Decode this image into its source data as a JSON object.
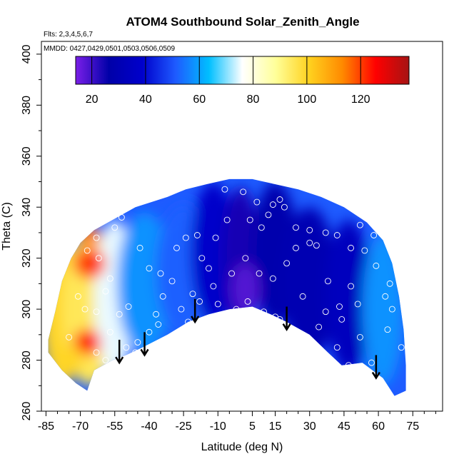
{
  "chart_data": {
    "type": "heatmap",
    "title": "ATOM4 Southbound Solar_Zenith_Angle",
    "subtitle_flights": "Flts: 2,3,4,5,6,7",
    "subtitle_dates": "MMDD: 0427,0429,0501,0503,0506,0509",
    "xlabel": "Latitude (deg N)",
    "ylabel": "Theta (C)",
    "xlim": [
      -87,
      88
    ],
    "ylim": [
      260,
      405
    ],
    "xticks": [
      -85,
      -70,
      -55,
      -40,
      -25,
      -10,
      5,
      15,
      30,
      45,
      60,
      75
    ],
    "xtick_labels": [
      "-85",
      "-70",
      "-55",
      "-40",
      "-25",
      "-10",
      "5",
      "15",
      "30",
      "45",
      "60",
      "75"
    ],
    "yticks": [
      260,
      280,
      300,
      320,
      340,
      360,
      380,
      400
    ],
    "ytick_labels": [
      "260",
      "280",
      "300",
      "320",
      "340",
      "360",
      "380",
      "400"
    ],
    "colorbar": {
      "range": [
        14,
        138
      ],
      "ticks": [
        20,
        40,
        60,
        80,
        100,
        120
      ],
      "tick_labels": [
        "20",
        "40",
        "60",
        "80",
        "100",
        "120"
      ],
      "colors": [
        "#7A1FE8",
        "#0000A8",
        "#0000CC",
        "#1E5BFF",
        "#00BFFF",
        "#FFFFFF",
        "#FFFF99",
        "#FFD21F",
        "#FF8A00",
        "#FF0000",
        "#A51414"
      ]
    },
    "domain_outline": [
      [
        -84,
        288
      ],
      [
        -81,
        299
      ],
      [
        -78,
        311
      ],
      [
        -74,
        320
      ],
      [
        -70,
        326
      ],
      [
        -64,
        331
      ],
      [
        -56,
        335
      ],
      [
        -46,
        340
      ],
      [
        -32,
        344
      ],
      [
        -24,
        347
      ],
      [
        -15,
        349
      ],
      [
        -5,
        351
      ],
      [
        5,
        351
      ],
      [
        15,
        349
      ],
      [
        25,
        347
      ],
      [
        35,
        344
      ],
      [
        45,
        340
      ],
      [
        55,
        334
      ],
      [
        62,
        327
      ],
      [
        66,
        318
      ],
      [
        69,
        305
      ],
      [
        71,
        292
      ],
      [
        72,
        278
      ],
      [
        72,
        268
      ],
      [
        67,
        266
      ],
      [
        62,
        273
      ],
      [
        53,
        279
      ],
      [
        44,
        278
      ],
      [
        38,
        283
      ],
      [
        30,
        290
      ],
      [
        20,
        295
      ],
      [
        13,
        298
      ],
      [
        5,
        301
      ],
      [
        -5,
        300
      ],
      [
        -14,
        298
      ],
      [
        -23,
        295
      ],
      [
        -32,
        290
      ],
      [
        -43,
        285
      ],
      [
        -50,
        282
      ],
      [
        -56,
        280
      ],
      [
        -60,
        278
      ],
      [
        -64,
        276
      ],
      [
        -67,
        268
      ],
      [
        -72,
        271
      ],
      [
        -78,
        276
      ],
      [
        -84,
        283
      ]
    ],
    "color_field": [
      {
        "x": -78,
        "y": 298,
        "value": 100,
        "rx": 9,
        "ry": 28
      },
      {
        "x": -66,
        "y": 300,
        "value": 95,
        "rx": 12,
        "ry": 30
      },
      {
        "x": -55,
        "y": 305,
        "value": 75,
        "rx": 9,
        "ry": 30
      },
      {
        "x": -42,
        "y": 310,
        "value": 58,
        "rx": 12,
        "ry": 28
      },
      {
        "x": -25,
        "y": 315,
        "value": 52,
        "rx": 12,
        "ry": 26
      },
      {
        "x": -12,
        "y": 322,
        "value": 38,
        "rx": 10,
        "ry": 28
      },
      {
        "x": 0,
        "y": 320,
        "value": 24,
        "rx": 8,
        "ry": 28
      },
      {
        "x": 15,
        "y": 322,
        "value": 28,
        "rx": 10,
        "ry": 28
      },
      {
        "x": 30,
        "y": 310,
        "value": 30,
        "rx": 12,
        "ry": 30
      },
      {
        "x": 47,
        "y": 305,
        "value": 34,
        "rx": 10,
        "ry": 30
      },
      {
        "x": 62,
        "y": 300,
        "value": 58,
        "rx": 9,
        "ry": 30
      },
      {
        "x": 2,
        "y": 308,
        "value": 18,
        "rx": 6,
        "ry": 10
      },
      {
        "x": -66,
        "y": 318,
        "value": 120,
        "rx": 7,
        "ry": 6
      },
      {
        "x": -67,
        "y": 287,
        "value": 125,
        "rx": 6,
        "ry": 5
      },
      {
        "x": -66,
        "y": 329,
        "value": 115,
        "rx": 5,
        "ry": 4
      },
      {
        "x": -74,
        "y": 280,
        "value": 100,
        "rx": 5,
        "ry": 6
      }
    ],
    "observation_points": [
      [
        -71,
        305
      ],
      [
        -68,
        300
      ],
      [
        -63,
        299
      ],
      [
        -59,
        307
      ],
      [
        -57,
        312
      ],
      [
        -62,
        320
      ],
      [
        -67,
        323
      ],
      [
        -63,
        328
      ],
      [
        -55,
        332
      ],
      [
        -52,
        336
      ],
      [
        -44,
        324
      ],
      [
        -40,
        316
      ],
      [
        -35,
        314
      ],
      [
        -30,
        311
      ],
      [
        -28,
        324
      ],
      [
        -24,
        328
      ],
      [
        -19,
        329
      ],
      [
        -17,
        320
      ],
      [
        -34,
        305
      ],
      [
        -37,
        298
      ],
      [
        -40,
        291
      ],
      [
        -49,
        301
      ],
      [
        -53,
        298
      ],
      [
        -57,
        291
      ],
      [
        -50,
        285
      ],
      [
        -46,
        283
      ],
      [
        -43,
        282
      ],
      [
        -30,
        288
      ],
      [
        -23,
        295
      ],
      [
        -10,
        302
      ],
      [
        -2,
        300
      ],
      [
        3,
        303
      ],
      [
        10,
        299
      ],
      [
        15,
        297
      ],
      [
        17,
        296
      ],
      [
        27,
        305
      ],
      [
        34,
        293
      ],
      [
        37,
        299
      ],
      [
        42,
        285
      ],
      [
        47,
        278
      ],
      [
        52,
        289
      ],
      [
        57,
        279
      ],
      [
        64,
        292
      ],
      [
        70,
        285
      ],
      [
        63,
        305
      ],
      [
        59,
        317
      ],
      [
        54,
        323
      ],
      [
        48,
        309
      ],
      [
        43,
        301
      ],
      [
        38,
        311
      ],
      [
        33,
        325
      ],
      [
        30,
        331
      ],
      [
        24,
        324
      ],
      [
        20,
        318
      ],
      [
        14,
        312
      ],
      [
        8,
        314
      ],
      [
        2,
        320
      ],
      [
        -4,
        314
      ],
      [
        -11,
        328
      ],
      [
        -14,
        316
      ],
      [
        -7,
        347
      ],
      [
        1,
        346
      ],
      [
        7,
        342
      ],
      [
        14,
        341
      ],
      [
        17,
        343
      ],
      [
        19,
        340
      ],
      [
        24,
        332
      ],
      [
        30,
        326
      ],
      [
        37,
        330
      ],
      [
        42,
        329
      ],
      [
        48,
        324
      ],
      [
        52,
        333
      ],
      [
        -6,
        335
      ],
      [
        4,
        335
      ],
      [
        9,
        332
      ],
      [
        12,
        337
      ],
      [
        -18,
        303
      ],
      [
        -26,
        300
      ],
      [
        -21,
        306
      ],
      [
        -12,
        309
      ],
      [
        58,
        329
      ],
      [
        65,
        310
      ],
      [
        66,
        300
      ],
      [
        -75,
        289
      ],
      [
        -63,
        283
      ],
      [
        -59,
        280
      ],
      [
        -52,
        278
      ],
      [
        -45,
        287
      ],
      [
        -36,
        294
      ],
      [
        44,
        296
      ],
      [
        51,
        302
      ]
    ],
    "arrows": [
      {
        "x": -53,
        "y_top": 288,
        "y_tip": 279
      },
      {
        "x": -42,
        "y_top": 291,
        "y_tip": 282
      },
      {
        "x": -20,
        "y_top": 304,
        "y_tip": 295
      },
      {
        "x": 20,
        "y_top": 301,
        "y_tip": 292
      },
      {
        "x": 59,
        "y_top": 282,
        "y_tip": 273
      }
    ]
  }
}
